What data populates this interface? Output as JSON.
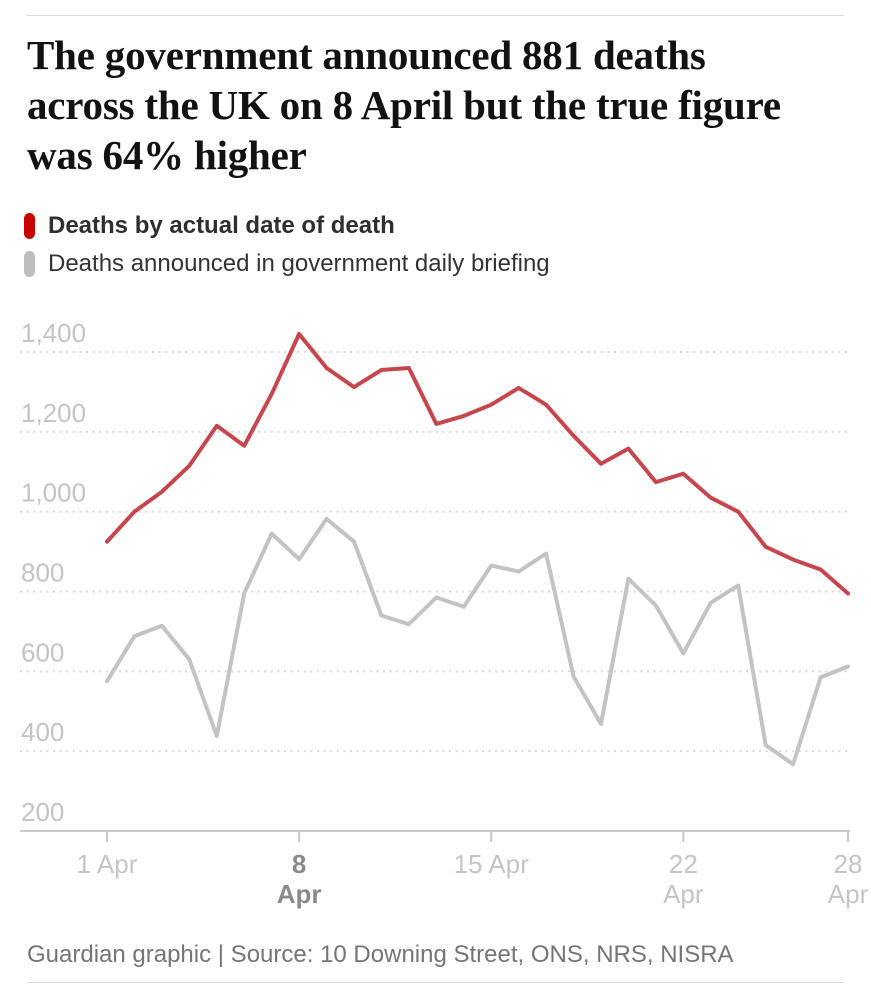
{
  "title_lines": [
    "The government announced 881 deaths",
    "across the UK on 8 April but the true figure",
    "was 64% higher"
  ],
  "legend": {
    "items": [
      {
        "label": "Deaths by actual date of death",
        "color": "#c70000",
        "bold": true
      },
      {
        "label": "Deaths announced in government daily briefing",
        "color": "#bdbdbd",
        "bold": false
      }
    ]
  },
  "footer": {
    "credit": "Guardian graphic | Source: 10 Downing Street, ONS, NRS, NISRA"
  },
  "chart_data": {
    "type": "line",
    "x_unit": "date in April 2020",
    "x": [
      1,
      2,
      3,
      4,
      5,
      6,
      7,
      8,
      9,
      10,
      11,
      12,
      13,
      14,
      15,
      16,
      17,
      18,
      19,
      20,
      21,
      22,
      23,
      24,
      25,
      26,
      27,
      28
    ],
    "series": [
      {
        "name": "Deaths by actual date of death",
        "color": "#c5474d",
        "values": [
          925,
          1000,
          1050,
          1115,
          1215,
          1165,
          1295,
          1445,
          1360,
          1312,
          1355,
          1360,
          1220,
          1240,
          1268,
          1310,
          1268,
          1190,
          1120,
          1158,
          1074,
          1095,
          1035,
          1000,
          912,
          880,
          855,
          795
        ]
      },
      {
        "name": "Deaths announced in government daily briefing",
        "color": "#c3c3c3",
        "values": [
          575,
          688,
          714,
          630,
          438,
          795,
          945,
          881,
          982,
          925,
          740,
          718,
          785,
          762,
          865,
          850,
          895,
          587,
          468,
          832,
          765,
          645,
          772,
          815,
          415,
          367,
          585,
          612
        ]
      }
    ],
    "ylim": [
      200,
      1400
    ],
    "grid": "dotted horizontal gridlines, solid baseline at 200",
    "legend_position": "top-left above plot",
    "yticks": [
      {
        "value": 1400,
        "label": "1,400"
      },
      {
        "value": 1200,
        "label": "1,200"
      },
      {
        "value": 1000,
        "label": "1,000"
      },
      {
        "value": 800,
        "label": "800"
      },
      {
        "value": 600,
        "label": "600"
      },
      {
        "value": 400,
        "label": "400"
      },
      {
        "value": 200,
        "label": "200"
      }
    ],
    "xticks": [
      {
        "day": 1,
        "line1": "1 Apr",
        "line2": "",
        "emphasis": false
      },
      {
        "day": 8,
        "line1": "8",
        "line2": "Apr",
        "emphasis": true
      },
      {
        "day": 15,
        "line1": "15 Apr",
        "line2": "",
        "emphasis": false
      },
      {
        "day": 22,
        "line1": "22",
        "line2": "Apr",
        "emphasis": false
      },
      {
        "day": 28,
        "line1": "28",
        "line2": "Apr",
        "emphasis": false
      }
    ]
  }
}
